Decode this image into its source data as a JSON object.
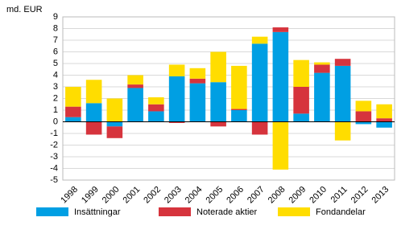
{
  "chart_data": {
    "type": "stacked-bar",
    "y_label": "md. EUR",
    "categories": [
      "1998",
      "1999",
      "2000",
      "2001",
      "2002",
      "2003",
      "2004",
      "2005",
      "2006",
      "2007",
      "2008",
      "2009",
      "2010",
      "2011",
      "2012",
      "2013"
    ],
    "series": [
      {
        "name": "Insättningar",
        "color": "#009fe3",
        "values": [
          0.4,
          1.6,
          -0.4,
          2.9,
          0.9,
          3.9,
          3.3,
          3.4,
          1.0,
          6.7,
          7.7,
          0.7,
          4.2,
          4.8,
          -0.2,
          -0.5
        ]
      },
      {
        "name": "Noterade aktier",
        "color": "#d6343d",
        "values": [
          0.9,
          -1.1,
          -1.0,
          0.3,
          0.6,
          -0.1,
          0.4,
          -0.4,
          0.1,
          -1.1,
          0.4,
          2.3,
          0.7,
          0.6,
          0.9,
          0.3
        ]
      },
      {
        "name": "Fondandelar",
        "color": "#ffdd00",
        "values": [
          1.7,
          2.0,
          2.0,
          0.8,
          0.6,
          1.0,
          0.9,
          2.6,
          3.7,
          0.6,
          -4.1,
          2.3,
          0.2,
          -1.6,
          0.9,
          1.2
        ]
      }
    ],
    "ylim": [
      -5,
      9
    ],
    "yticks": [
      -5,
      -4,
      -3,
      -2,
      -1,
      0,
      1,
      2,
      3,
      4,
      5,
      6,
      7,
      8,
      9
    ],
    "grid": true
  }
}
